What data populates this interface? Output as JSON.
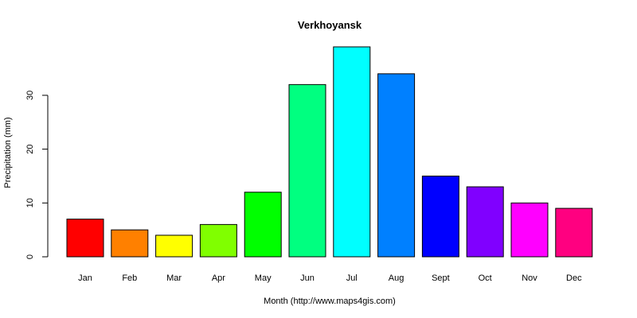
{
  "chart_data": {
    "type": "bar",
    "title": "Verkhoyansk",
    "xlabel": "Month (http://www.maps4gis.com)",
    "ylabel": "Precipitation (mm)",
    "categories": [
      "Jan",
      "Feb",
      "Mar",
      "Apr",
      "May",
      "Jun",
      "Jul",
      "Aug",
      "Sept",
      "Oct",
      "Nov",
      "Dec"
    ],
    "values": [
      7,
      5,
      4,
      6,
      12,
      32,
      39,
      34,
      15,
      13,
      10,
      9
    ],
    "colors": [
      "#FF0000",
      "#FF8000",
      "#FFFF00",
      "#80FF00",
      "#00FF00",
      "#00FF80",
      "#00FFFF",
      "#0080FF",
      "#0000FF",
      "#8000FF",
      "#FF00FF",
      "#FF0080"
    ],
    "ylim": [
      0,
      40
    ],
    "yticks": [
      0,
      10,
      20,
      30
    ],
    "grid": false,
    "legend": false
  }
}
